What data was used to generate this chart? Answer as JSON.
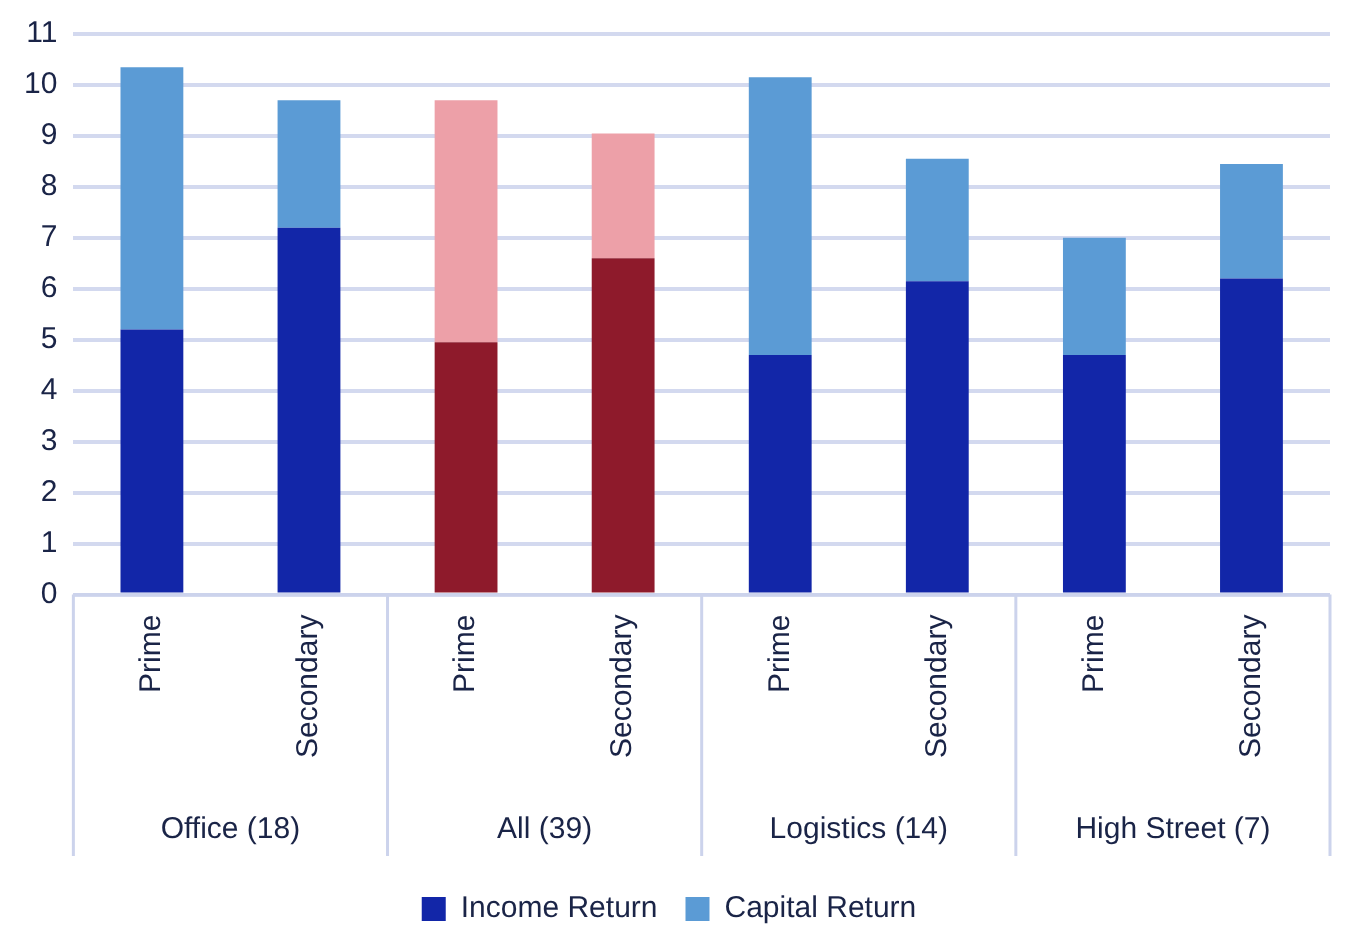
{
  "chart_data": {
    "type": "bar",
    "stacked": true,
    "categories": [
      "Prime",
      "Secondary",
      "Prime",
      "Secondary",
      "Prime",
      "Secondary",
      "Prime",
      "Secondary"
    ],
    "series": [
      {
        "name": "Income Return",
        "color": "#1226a8",
        "colors": [
          "#1226a8",
          "#1226a8",
          "#8e1a2b",
          "#8e1a2b",
          "#1226a8",
          "#1226a8",
          "#1226a8",
          "#1226a8"
        ],
        "values": [
          5.2,
          7.2,
          4.95,
          6.6,
          4.7,
          6.15,
          4.7,
          6.2
        ]
      },
      {
        "name": "Capital Return",
        "color": "#5b9bd5",
        "colors": [
          "#5b9bd5",
          "#5b9bd5",
          "#eda0a8",
          "#eda0a8",
          "#5b9bd5",
          "#5b9bd5",
          "#5b9bd5",
          "#5b9bd5"
        ],
        "values": [
          5.15,
          2.5,
          4.75,
          2.45,
          5.45,
          2.4,
          2.3,
          2.25
        ]
      }
    ],
    "annotations": [
      "Office (18)",
      "All (39)",
      "Logistics (14)",
      "High Street (7)"
    ],
    "ylim": [
      0,
      11
    ],
    "yticks": [
      0,
      1,
      2,
      3,
      4,
      5,
      6,
      7,
      8,
      9,
      10,
      11
    ],
    "grid": "y",
    "legend": "bottom"
  }
}
